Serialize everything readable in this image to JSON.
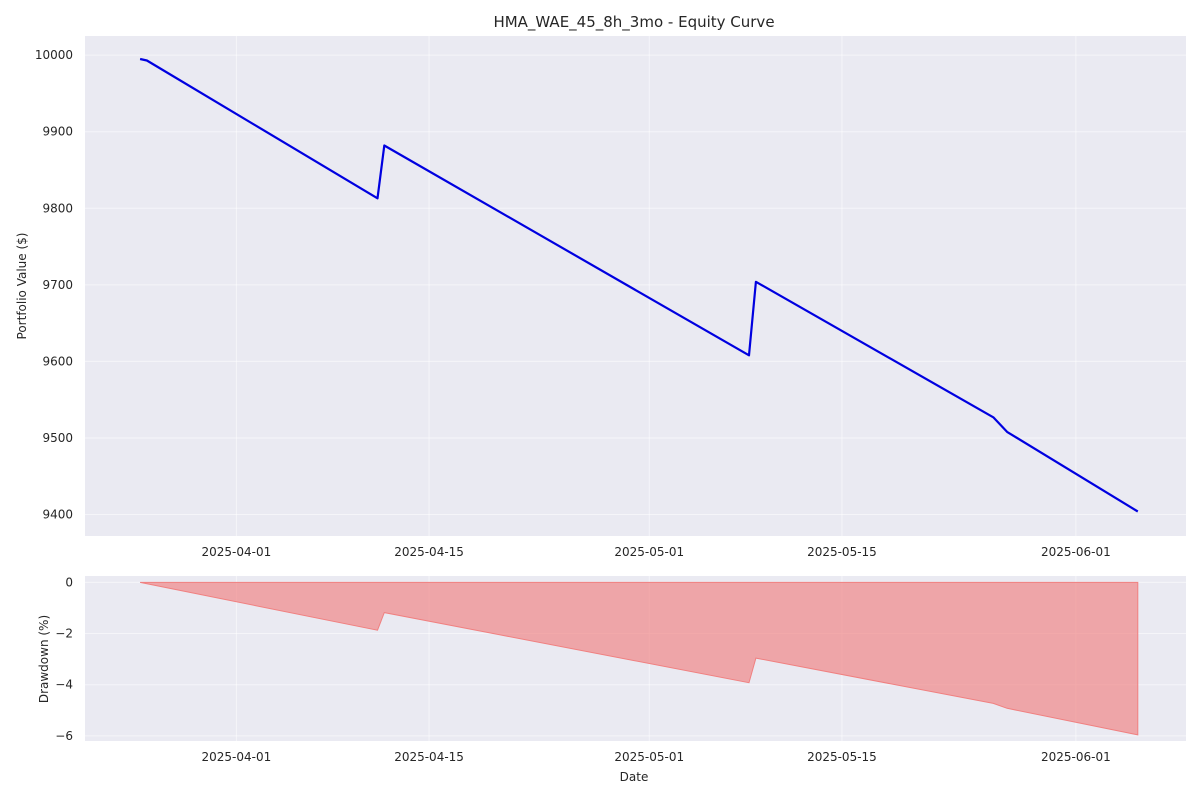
{
  "chart_data": [
    {
      "type": "line",
      "title": "HMA_WAE_45_8h_3mo - Equity Curve",
      "xlabel": "",
      "ylabel": "Portfolio Value ($)",
      "xlim": [
        "2025-03-21",
        "2025-06-09"
      ],
      "ylim": [
        9372,
        10025
      ],
      "x_ticks": [
        "2025-04-01",
        "2025-04-15",
        "2025-05-01",
        "2025-05-15",
        "2025-06-01"
      ],
      "y_ticks": [
        9400,
        9500,
        9600,
        9700,
        9800,
        9900,
        10000
      ],
      "grid": true,
      "line_color": "#0000e0",
      "series": [
        {
          "x": [
            "2025-03-25",
            "2025-03-25 12:00",
            "2025-04-11 06:00",
            "2025-04-11 18:00",
            "2025-05-08 06:00",
            "2025-05-08 18:00",
            "2025-05-26",
            "2025-05-27",
            "2025-06-05 12:00"
          ],
          "y": [
            9995,
            9993,
            9813,
            9882,
            9608,
            9704,
            9527,
            9508,
            9404
          ]
        }
      ]
    },
    {
      "type": "area",
      "title": "",
      "xlabel": "Date",
      "ylabel": "Drawdown (%)",
      "xlim": [
        "2025-03-21",
        "2025-06-09"
      ],
      "ylim": [
        -6.2,
        0.25
      ],
      "x_ticks": [
        "2025-04-01",
        "2025-04-15",
        "2025-05-01",
        "2025-05-15",
        "2025-06-01"
      ],
      "y_ticks": [
        0,
        -2,
        -4,
        -6
      ],
      "grid": true,
      "fill_color": "#f08080",
      "series": [
        {
          "x": [
            "2025-03-25",
            "2025-04-11 06:00",
            "2025-04-11 18:00",
            "2025-05-08 06:00",
            "2025-05-08 18:00",
            "2025-05-26",
            "2025-05-27",
            "2025-06-05 12:00"
          ],
          "y": [
            0,
            -1.87,
            -1.18,
            -3.92,
            -2.96,
            -4.73,
            -4.92,
            -5.96
          ]
        }
      ]
    }
  ]
}
